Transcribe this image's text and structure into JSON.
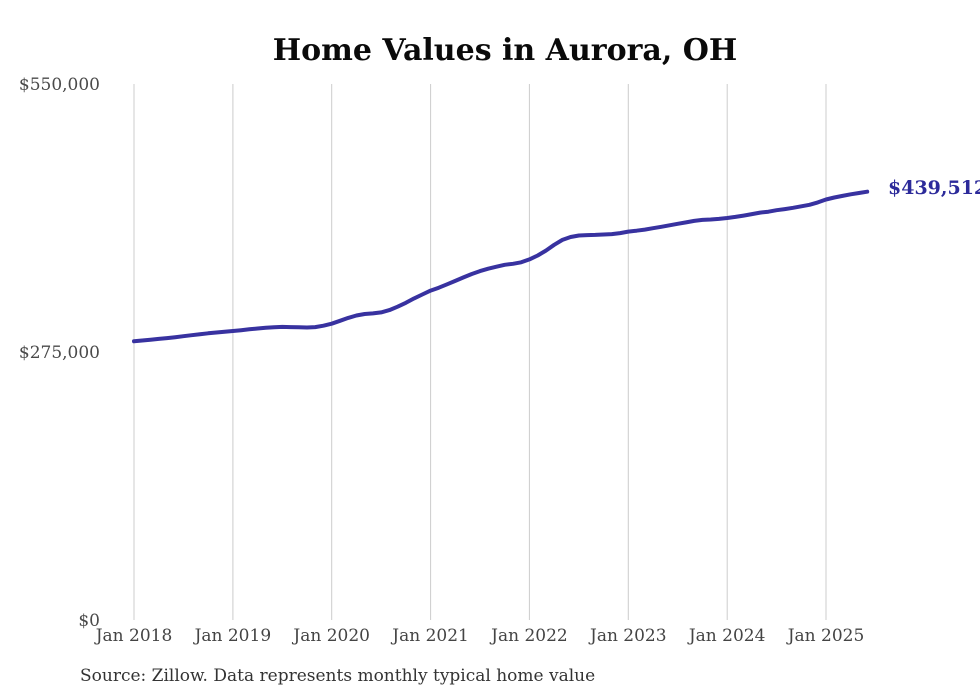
{
  "title": "Home Values in Aurora, OH",
  "source_note": "Source: Zillow. Data represents monthly typical home value",
  "end_label": "$439,512",
  "colors": {
    "line": "#3832a0",
    "end_label": "#2c2a9a",
    "gridline": "#cccccc",
    "title": "#0a0a0a",
    "axis_label": "#4a4a4a",
    "source": "#333333",
    "background": "#ffffff"
  },
  "chart_data": {
    "type": "line",
    "title": "Home Values in Aurora, OH",
    "xlabel": "",
    "ylabel": "",
    "frequency": "monthly",
    "x_start": "Jan 2018",
    "x_end": "Jun 2025",
    "ylim": [
      0,
      550000
    ],
    "grid": "vertical-only",
    "legend": "none",
    "x_tick_labels": [
      "Jan 2018",
      "Jan 2019",
      "Jan 2020",
      "Jan 2021",
      "Jan 2022",
      "Jan 2023",
      "Jan 2024",
      "Jan 2025"
    ],
    "y_ticks": [
      {
        "value": 0,
        "label": "$0"
      },
      {
        "value": 275000,
        "label": "$275,000"
      },
      {
        "value": 550000,
        "label": "$550,000"
      }
    ],
    "end_value": 439512,
    "end_value_label": "$439,512",
    "series": [
      {
        "name": "Typical home value",
        "values": [
          286000,
          286800,
          287600,
          288400,
          289300,
          290200,
          291200,
          292200,
          293200,
          294200,
          295000,
          295800,
          296500,
          297400,
          298300,
          299100,
          299800,
          300400,
          300800,
          300600,
          300300,
          300100,
          300600,
          302000,
          304000,
          307000,
          310000,
          312500,
          314000,
          314600,
          315600,
          318000,
          321500,
          325500,
          330000,
          334000,
          338000,
          341000,
          344500,
          348000,
          351500,
          355000,
          358000,
          360500,
          362500,
          364500,
          365500,
          367000,
          370000,
          374000,
          379000,
          385000,
          390000,
          393000,
          394500,
          395000,
          395200,
          395600,
          396000,
          397000,
          398500,
          399500,
          400600,
          402000,
          403500,
          405000,
          406500,
          408000,
          409500,
          410500,
          411000,
          411600,
          412500,
          413600,
          415000,
          416500,
          418000,
          419000,
          420500,
          421600,
          423000,
          424500,
          426000,
          428500,
          431500,
          433500,
          435200,
          436800,
          438200,
          439512
        ]
      }
    ]
  }
}
